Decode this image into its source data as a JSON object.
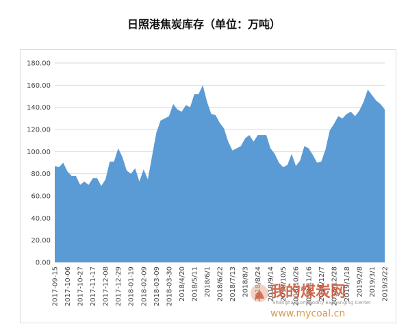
{
  "chart_data": {
    "type": "area",
    "title": "日照港焦炭库存（单位：万吨）",
    "ylim": [
      0,
      180
    ],
    "y_ticks": [
      "0.00",
      "20.00",
      "40.00",
      "60.00",
      "80.00",
      "100.00",
      "120.00",
      "140.00",
      "160.00",
      "180.00"
    ],
    "grid": "horizontal",
    "legend": "none",
    "color": "#5b9bd5",
    "x_tick_labels": [
      "2017-09-15",
      "2017-10-06",
      "2017-10-27",
      "2017-11-17",
      "2017-12-08",
      "2017-12-29",
      "2018-01-19",
      "2018-02-09",
      "2018-03-09",
      "2018-03-30",
      "2018/4/20",
      "2018/5/11",
      "2018/6/1",
      "2018/6/22",
      "2018/7/13",
      "2018/8/3",
      "2018/8/24",
      "2018/9/14",
      "2018/10/5",
      "2018/10/26",
      "2018/11/16",
      "2018/12/7",
      "2018/12/28",
      "2019/1/18",
      "2019/2/8",
      "2019/3/1",
      "2019/3/22"
    ],
    "values": [
      87,
      86,
      90,
      82,
      78,
      78,
      70,
      73,
      70,
      76,
      76,
      69,
      75,
      91,
      91,
      103,
      95,
      83,
      80,
      85,
      73,
      84,
      75,
      96,
      117,
      128,
      130,
      132,
      143,
      138,
      136,
      142,
      140,
      152,
      152,
      160,
      145,
      134,
      133,
      126,
      121,
      109,
      101,
      103,
      105,
      112,
      115,
      109,
      115,
      115,
      115,
      103,
      98,
      90,
      86,
      88,
      98,
      87,
      92,
      105,
      103,
      97,
      90,
      91,
      102,
      119,
      125,
      132,
      130,
      134,
      136,
      132,
      137,
      145,
      156,
      151,
      146,
      143,
      138
    ]
  },
  "watermark": {
    "cn": "我的煤炭网",
    "url": "www.mycoal.cn",
    "en": "Shanghai Commodity Exchanging Center"
  }
}
